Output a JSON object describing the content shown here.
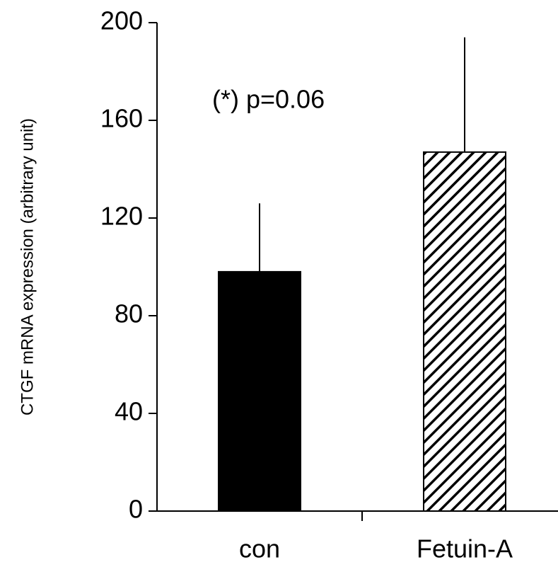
{
  "chart_data": {
    "type": "bar",
    "y_label": "CTGF mRNA expression (arbitrary unit)",
    "annotation": "(*) p=0.06",
    "categories": [
      "con",
      "Fetuin-A"
    ],
    "values": [
      98,
      147
    ],
    "errors": [
      28,
      47
    ],
    "color": "#000000",
    "ylim": [
      0,
      200
    ],
    "yticks": [
      0,
      40,
      80,
      120,
      160,
      200
    ],
    "grid": false
  }
}
